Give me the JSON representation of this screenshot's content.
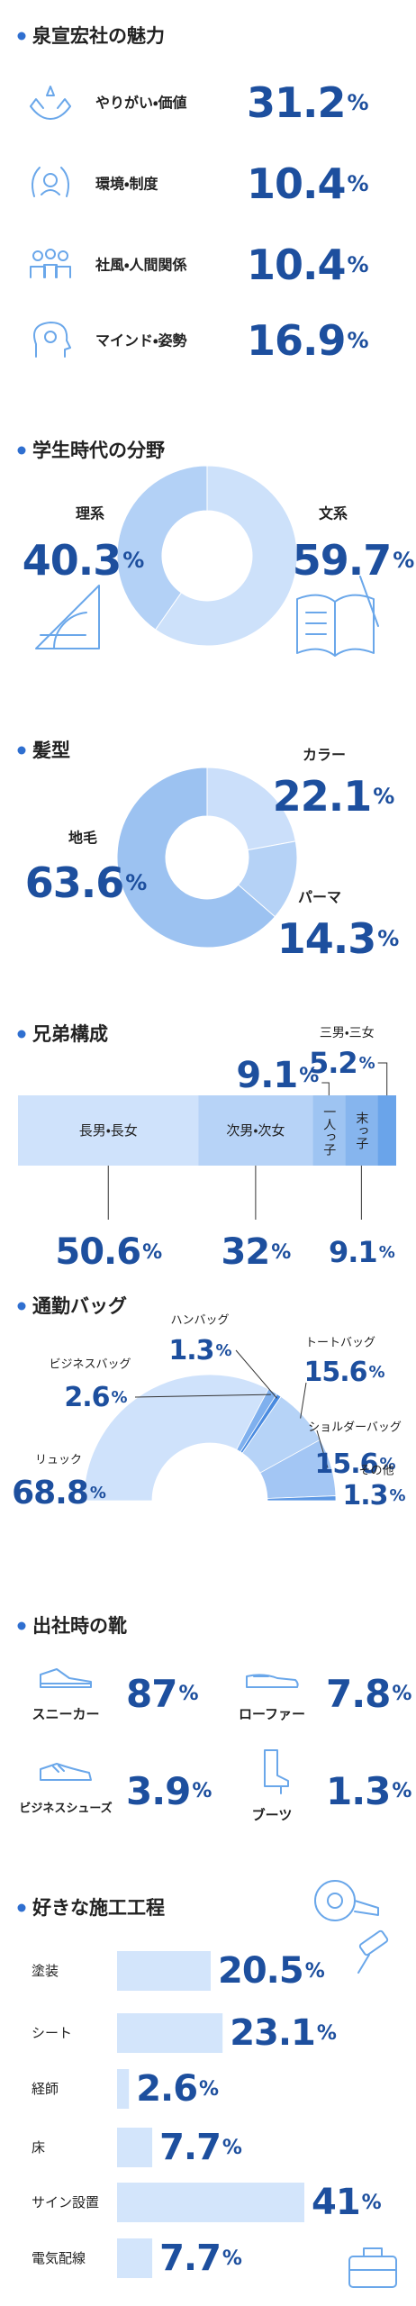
{
  "chart_data": [
    {
      "type": "stat",
      "title": "泉宣宏社の魅力",
      "categories": [
        "やりがい・価値",
        "環境・制度",
        "社風・人間関係",
        "マインド・姿勢"
      ],
      "values": [
        31.2,
        10.4,
        10.4,
        16.9
      ],
      "value_labels": [
        "31.2%",
        "10.4%",
        "10.4%",
        "16.9%"
      ]
    },
    {
      "type": "pie",
      "title": "学生時代の分野",
      "categories": [
        "理系",
        "文系"
      ],
      "values": [
        40.3,
        59.7
      ],
      "value_labels": [
        "40.3%",
        "59.7%"
      ],
      "colors": [
        "#b3d1f6",
        "#cde1fa"
      ]
    },
    {
      "type": "pie",
      "title": "髪型",
      "categories": [
        "地毛",
        "カラー",
        "パーマ"
      ],
      "values": [
        63.6,
        22.1,
        14.3
      ],
      "value_labels": [
        "63.6%",
        "22.1%",
        "14.3%"
      ],
      "colors": [
        "#9cc2f1",
        "#cbdffa",
        "#b5d2f6"
      ]
    },
    {
      "type": "stackedbar",
      "title": "兄弟構成",
      "categories": [
        "長男・長女",
        "次男・次女",
        "一人っ子",
        "末っ子",
        "三男・三女"
      ],
      "values": [
        50.6,
        32,
        9.1,
        9.1,
        5.2
      ],
      "value_labels": [
        "50.6%",
        "32%",
        "9.1%",
        "9.1%",
        "5.2%"
      ],
      "colors": [
        "#cfe2fb",
        "#b7d3f7",
        "#9ec4f2",
        "#86b5ee",
        "#6aa4ea"
      ]
    },
    {
      "type": "halfdonut",
      "title": "通勤バッグ",
      "categories": [
        "リュック",
        "ビジネスバッグ",
        "ハンバッグ",
        "トートバッグ",
        "ショルダーバッグ",
        "その他"
      ],
      "values": [
        68.8,
        2.6,
        1.3,
        15.6,
        15.6,
        1.3
      ],
      "value_labels": [
        "68.8%",
        "2.6%",
        "1.3%",
        "15.6%",
        "15.6%",
        "1.3%"
      ],
      "colors": [
        "#cfe2fb",
        "#7fb0ee",
        "#4a8be0",
        "#b6d3f7",
        "#a3c6f4",
        "#5d98e4"
      ]
    },
    {
      "type": "stat",
      "title": "出社時の靴",
      "categories": [
        "スニーカー",
        "ローファー",
        "ビジネスシューズ",
        "ブーツ"
      ],
      "values": [
        87,
        7.8,
        3.9,
        1.3
      ],
      "value_labels": [
        "87%",
        "7.8%",
        "3.9%",
        "1.3%"
      ]
    },
    {
      "type": "bar",
      "title": "好きな施工工程",
      "categories": [
        "塗装",
        "シート",
        "経師",
        "床",
        "サイン設置",
        "電気配線"
      ],
      "values": [
        20.5,
        23.1,
        2.6,
        7.7,
        41,
        7.7
      ],
      "value_labels": [
        "20.5%",
        "23.1%",
        "2.6%",
        "7.7%",
        "41%",
        "7.7%"
      ],
      "color": "#d3e5fb"
    }
  ]
}
